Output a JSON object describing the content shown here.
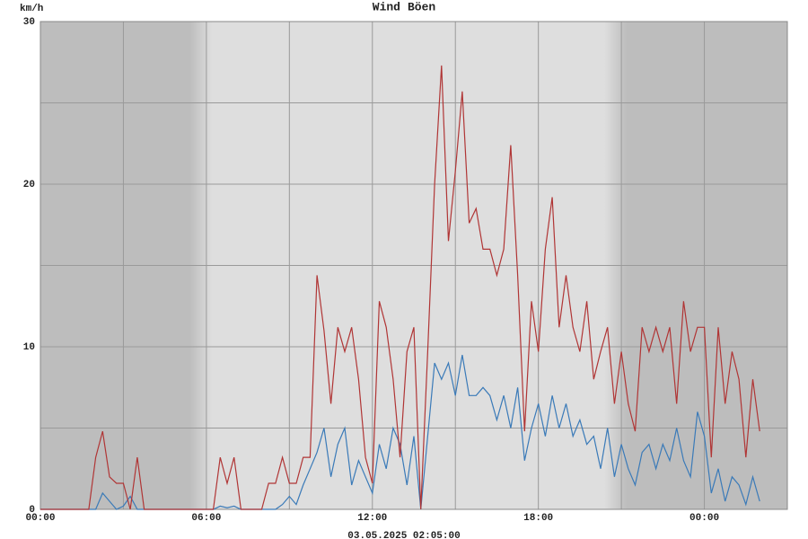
{
  "chart_data": {
    "type": "line",
    "y_label": "km/h",
    "footer": "03.05.2025 02:05:00",
    "x": [
      0,
      0.25,
      0.5,
      0.75,
      1,
      1.25,
      1.5,
      1.75,
      2,
      2.25,
      2.5,
      2.75,
      3,
      3.25,
      3.5,
      3.75,
      4,
      4.25,
      4.5,
      4.75,
      5,
      5.25,
      5.5,
      5.75,
      6,
      6.25,
      6.5,
      6.75,
      7,
      7.25,
      7.5,
      7.75,
      8,
      8.25,
      8.5,
      8.75,
      9,
      9.25,
      9.5,
      9.75,
      10,
      10.25,
      10.5,
      10.75,
      11,
      11.25,
      11.5,
      11.75,
      12,
      12.25,
      12.5,
      12.75,
      13,
      13.25,
      13.5,
      13.75,
      14,
      14.25,
      14.5,
      14.75,
      15,
      15.25,
      15.5,
      15.75,
      16,
      16.25,
      16.5,
      16.75,
      17,
      17.25,
      17.5,
      17.75,
      18,
      18.25,
      18.5,
      18.75,
      19,
      19.25,
      19.5,
      19.75,
      20,
      20.25,
      20.5,
      20.75,
      21,
      21.25,
      21.5,
      21.75,
      22,
      22.25,
      22.5,
      22.75,
      23,
      23.25,
      23.5,
      23.75,
      24,
      24.25,
      24.5,
      24.75,
      25,
      25.25,
      25.5,
      25.75,
      26
    ],
    "series": [
      {
        "name": "Wind",
        "color": "#3a7ab8",
        "values": [
          0,
          0,
          0,
          0,
          0,
          0,
          0,
          0,
          0,
          1,
          0.5,
          0,
          0.2,
          0.8,
          0,
          0,
          0,
          0,
          0,
          0,
          0,
          0,
          0,
          0,
          0,
          0,
          0.2,
          0.1,
          0.2,
          0,
          0,
          0,
          0,
          0,
          0,
          0.3,
          0.8,
          0.3,
          1.5,
          2.5,
          3.5,
          5,
          2,
          4,
          5,
          1.5,
          3,
          2,
          1,
          4,
          2.5,
          5,
          4,
          1.5,
          4.5,
          0,
          4.5,
          9,
          8,
          9,
          7,
          9.5,
          7,
          7,
          7.5,
          7,
          5.5,
          7,
          5,
          7.5,
          3,
          5,
          6.5,
          4.5,
          7,
          5,
          6.5,
          4.5,
          5.5,
          4,
          4.5,
          2.5,
          5,
          2,
          4,
          2.5,
          1.5,
          3.5,
          4,
          2.5,
          4,
          3,
          5,
          3,
          2,
          6,
          4.5,
          1,
          2.5,
          0.5,
          2,
          1.5,
          0.3,
          2,
          0.5
        ]
      },
      {
        "name": "Böen",
        "color": "#b03535",
        "values": [
          0,
          0,
          0,
          0,
          0,
          0,
          0,
          0,
          3.2,
          4.8,
          2,
          1.6,
          1.6,
          0,
          3.2,
          0,
          0,
          0,
          0,
          0,
          0,
          0,
          0,
          0,
          0,
          0,
          3.2,
          1.6,
          3.2,
          0,
          0,
          0,
          0,
          1.6,
          1.6,
          3.2,
          1.6,
          1.6,
          3.2,
          3.2,
          14.4,
          11,
          6.5,
          11.2,
          9.7,
          11.2,
          8,
          3.2,
          1.6,
          12.8,
          11.2,
          8,
          3.2,
          9.7,
          11.2,
          0,
          9.7,
          20,
          27.3,
          16.5,
          20.8,
          25.7,
          17.6,
          18.5,
          16,
          16,
          14.4,
          16,
          22.4,
          14.4,
          4.8,
          12.8,
          9.7,
          16,
          19.2,
          11.2,
          14.4,
          11.2,
          9.7,
          12.8,
          8,
          9.7,
          11.2,
          6.5,
          9.7,
          6.5,
          4.8,
          11.2,
          9.7,
          11.2,
          9.7,
          11.2,
          6.5,
          12.8,
          9.7,
          11.2,
          11.2,
          3.2,
          11.2,
          6.5,
          9.7,
          8,
          3.2,
          8,
          4.8
        ]
      }
    ],
    "xlim": [
      0,
      27
    ],
    "xticks": [
      {
        "value": 0,
        "label": "00:00"
      },
      {
        "value": 6,
        "label": "06:00"
      },
      {
        "value": 12,
        "label": "12:00"
      },
      {
        "value": 18,
        "label": "18:00"
      },
      {
        "value": 24,
        "label": "00:00"
      }
    ],
    "ylim": [
      0,
      30
    ],
    "yticks": [
      0,
      10,
      20,
      30
    ],
    "grid": true
  }
}
